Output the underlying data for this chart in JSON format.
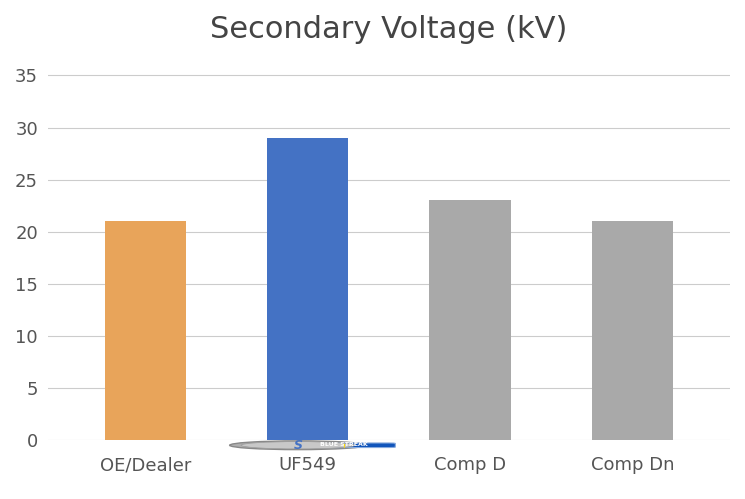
{
  "title": "Secondary Voltage (kV)",
  "categories": [
    "OE/Dealer",
    "UF549",
    "Comp D",
    "Comp Dn"
  ],
  "values": [
    21.0,
    29.0,
    23.0,
    21.0
  ],
  "bar_colors": [
    "#E8A45A",
    "#4472C4",
    "#A9A9A9",
    "#A9A9A9"
  ],
  "ylim": [
    0,
    37
  ],
  "yticks": [
    0,
    5,
    10,
    15,
    20,
    25,
    30,
    35
  ],
  "title_fontsize": 22,
  "tick_fontsize": 13,
  "xlabel_fontsize": 13,
  "background_color": "#FFFFFF",
  "grid_color": "#CCCCCC",
  "bar_width": 0.5
}
